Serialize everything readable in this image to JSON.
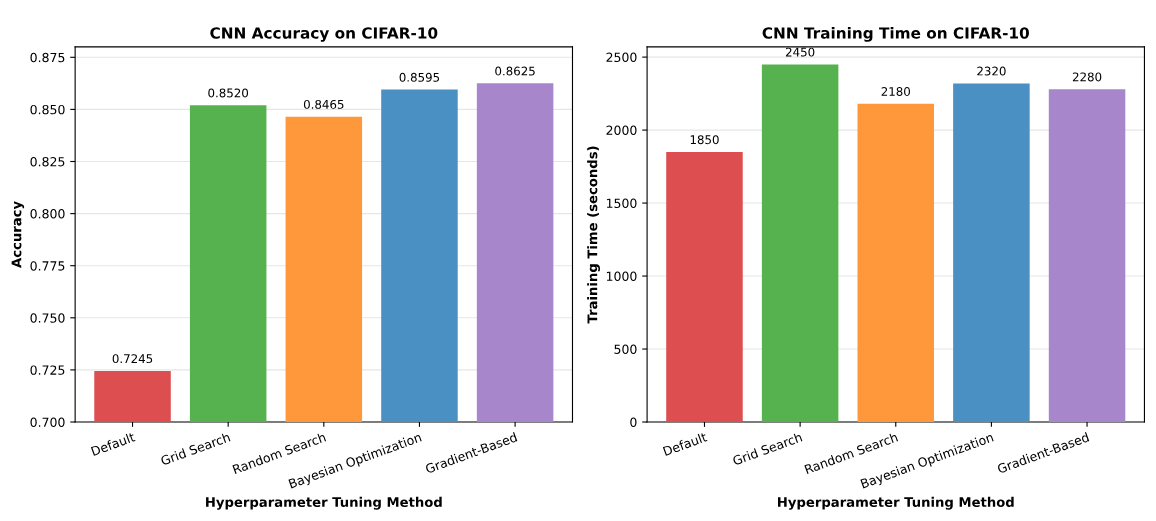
{
  "chart_data": [
    {
      "type": "bar",
      "title": "CNN Accuracy on CIFAR-10",
      "xlabel": "Hyperparameter Tuning Method",
      "ylabel": "Accuracy",
      "categories": [
        "Default",
        "Grid Search",
        "Random Search",
        "Bayesian Optimization",
        "Gradient-Based"
      ],
      "values": [
        0.7245,
        0.852,
        0.8465,
        0.8595,
        0.8625
      ],
      "value_labels": [
        "0.7245",
        "0.8520",
        "0.8465",
        "0.8595",
        "0.8625"
      ],
      "colors": [
        "#dc4e4f",
        "#55b24f",
        "#ff983a",
        "#4a90c2",
        "#a886cb"
      ],
      "ylim": [
        0.7,
        0.88
      ],
      "yticks": [
        "0.700",
        "0.725",
        "0.750",
        "0.775",
        "0.800",
        "0.825",
        "0.850",
        "0.875"
      ],
      "grid": "y"
    },
    {
      "type": "bar",
      "title": "CNN Training Time on CIFAR-10",
      "xlabel": "Hyperparameter Tuning Method",
      "ylabel": "Training Time (seconds)",
      "categories": [
        "Default",
        "Grid Search",
        "Random Search",
        "Bayesian Optimization",
        "Gradient-Based"
      ],
      "values": [
        1850,
        2450,
        2180,
        2320,
        2280
      ],
      "data_labels": true,
      "colors": [
        "#dc4e4f",
        "#55b24f",
        "#ff983a",
        "#4a90c2",
        "#a886cb"
      ],
      "ylim": [
        0,
        2570
      ],
      "yticks": [
        0,
        500,
        1000,
        1500,
        2000,
        2500
      ],
      "grid": "y"
    }
  ]
}
